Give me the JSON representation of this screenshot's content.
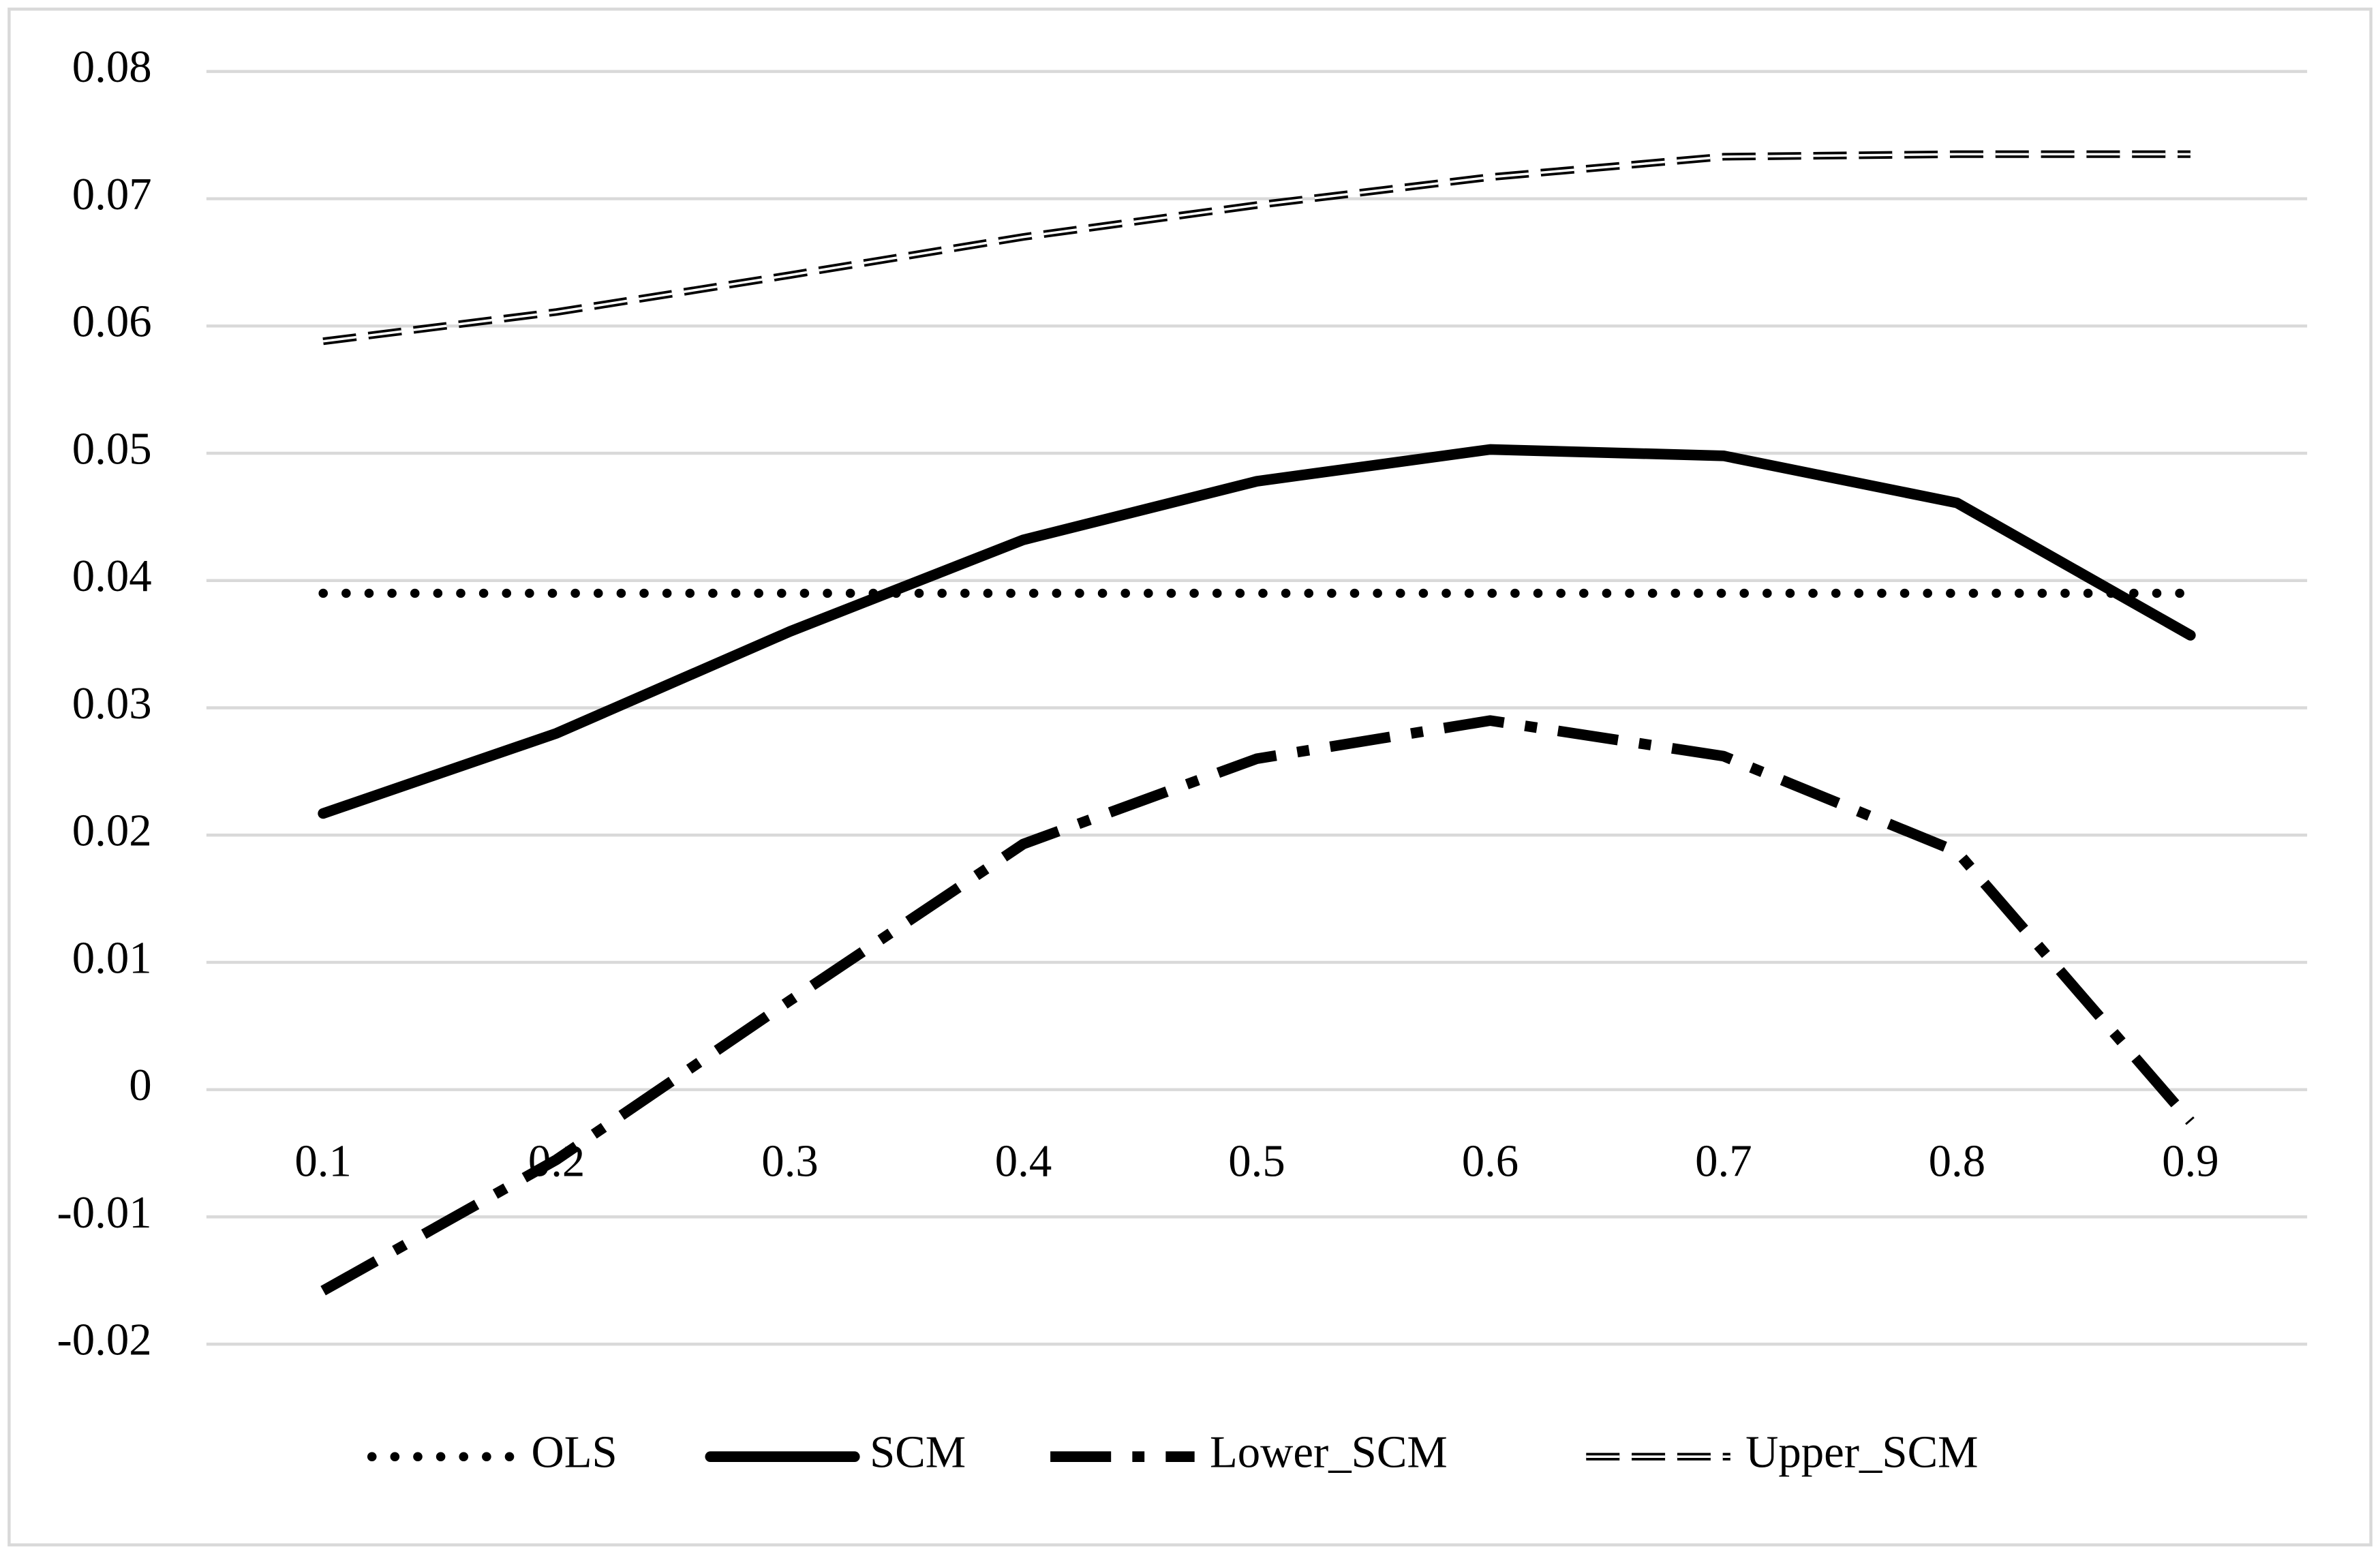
{
  "chart_data": {
    "type": "line",
    "categories": [
      "0.1",
      "0.2",
      "0.3",
      "0.4",
      "0.5",
      "0.6",
      "0.7",
      "0.8",
      "0.9"
    ],
    "series": [
      {
        "name": "OLS",
        "color": "#000000",
        "style": "dotted",
        "values": [
          0.039,
          0.039,
          0.039,
          0.039,
          0.039,
          0.039,
          0.039,
          0.039,
          0.039
        ]
      },
      {
        "name": "SCM",
        "color": "#000000",
        "style": "solid",
        "values": [
          0.0217,
          0.028,
          0.036,
          0.0432,
          0.0478,
          0.0503,
          0.0498,
          0.0461,
          0.0357
        ]
      },
      {
        "name": "Lower_SCM",
        "color": "#000000",
        "style": "long-dash-dot",
        "values": [
          -0.0158,
          -0.0055,
          0.007,
          0.0193,
          0.026,
          0.029,
          0.0262,
          0.0187,
          -0.0025
        ]
      },
      {
        "name": "Upper_SCM",
        "color": "#000000",
        "style": "double-dash",
        "values": [
          0.0588,
          0.0611,
          0.064,
          0.067,
          0.0695,
          0.0717,
          0.0733,
          0.0735,
          0.0735
        ]
      }
    ],
    "ylim": [
      -0.02,
      0.08
    ],
    "yticks": [
      -0.02,
      -0.01,
      0,
      0.01,
      0.02,
      0.03,
      0.04,
      0.05,
      0.06,
      0.07,
      0.08
    ],
    "grid": true,
    "legend": "bottom"
  }
}
